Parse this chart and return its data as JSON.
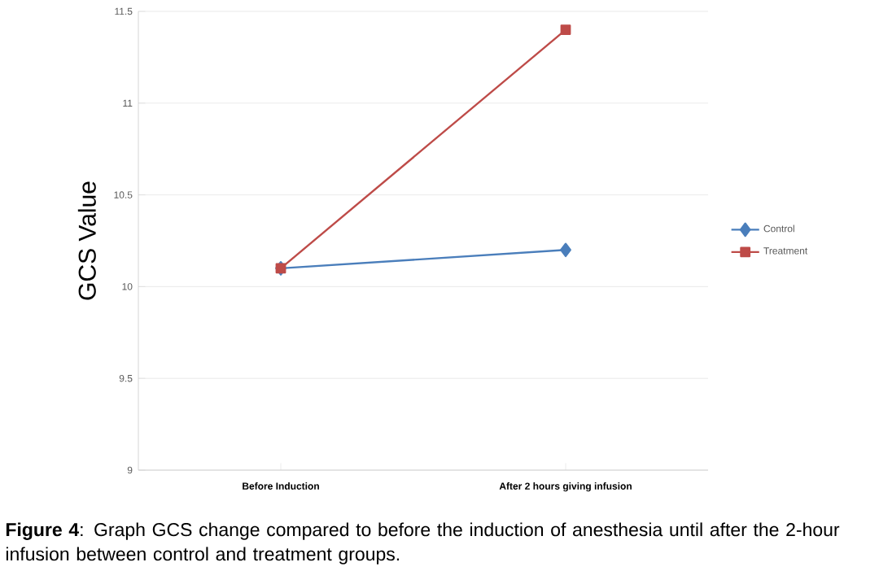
{
  "chart_data": {
    "type": "line",
    "ylabel": "GCS Value",
    "categories": [
      "Before Induction",
      "After 2 hours giving infusion"
    ],
    "series": [
      {
        "name": "Control",
        "color": "#4a7ebb",
        "values": [
          10.1,
          10.2
        ],
        "marker": "diamond"
      },
      {
        "name": "Treatment",
        "color": "#be4b48",
        "values": [
          10.1,
          11.4
        ],
        "marker": "square"
      }
    ],
    "ylim": [
      9,
      11.5
    ],
    "yticks": [
      9,
      9.5,
      10,
      10.5,
      11,
      11.5
    ],
    "grid": "y",
    "legend": "right",
    "annotations": [
      "**Figure 4**: Graph GCS change compared to before the induction of anesthesia until after the 2-hour infusion between control and treatment groups."
    ]
  }
}
